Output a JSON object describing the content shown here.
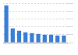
{
  "chart_data": {
    "type": "bar",
    "categories": [
      null,
      null,
      null,
      null,
      null,
      null,
      null,
      null,
      null,
      null
    ],
    "values": [
      47,
      18,
      15,
      13,
      12,
      11,
      10,
      10,
      9,
      9
    ],
    "color": "#3a7fd6",
    "ylim": [
      0,
      50
    ],
    "yticks": [
      0,
      10,
      20,
      30,
      40,
      50
    ],
    "grid": true,
    "tick_labels": false
  }
}
